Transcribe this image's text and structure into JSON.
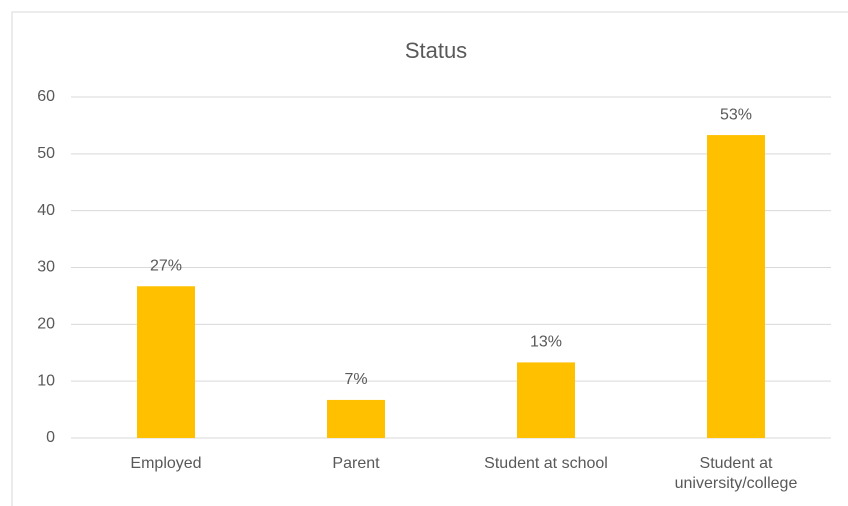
{
  "chart_data": {
    "type": "bar",
    "title": "Status",
    "categories": [
      "Employed",
      "Parent",
      "Student at school",
      "Student at university/college"
    ],
    "values": [
      26.7,
      6.7,
      13.3,
      53.3
    ],
    "value_labels": [
      "27%",
      "7%",
      "13%",
      "53%"
    ],
    "color": "#ffc000",
    "ylim": [
      0,
      60
    ],
    "yticks": [
      0,
      10,
      20,
      30,
      40,
      50,
      60
    ],
    "grid": true
  }
}
